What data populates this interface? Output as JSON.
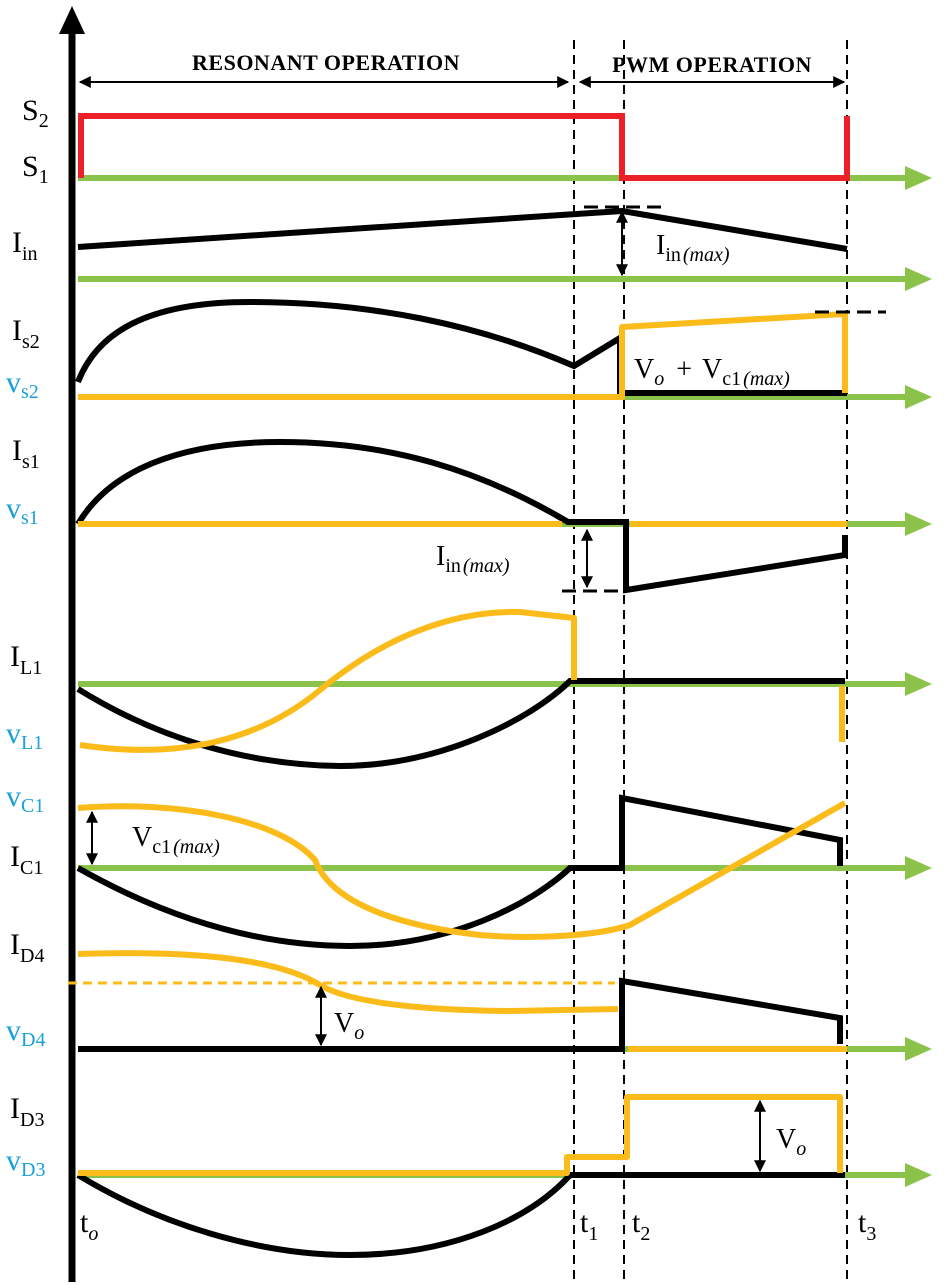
{
  "sections": {
    "resonant": "RESONANT OPERATION",
    "pwm": "PWM OPERATION"
  },
  "signals": [
    {
      "id": "s2",
      "base": "S",
      "sub": "2",
      "color": "black"
    },
    {
      "id": "s1",
      "base": "S",
      "sub": "1",
      "color": "black"
    },
    {
      "id": "iin",
      "base": "I",
      "sub": "in",
      "color": "black"
    },
    {
      "id": "is2",
      "base": "I",
      "sub": "s2",
      "color": "black"
    },
    {
      "id": "vs2",
      "base": "v",
      "sub": "s2",
      "color": "blue"
    },
    {
      "id": "is1",
      "base": "I",
      "sub": "s1",
      "color": "black"
    },
    {
      "id": "vs1",
      "base": "v",
      "sub": "s1",
      "color": "blue"
    },
    {
      "id": "il1",
      "base": "I",
      "sub": "L1",
      "color": "black"
    },
    {
      "id": "vl1",
      "base": "v",
      "sub": "L1",
      "color": "blue"
    },
    {
      "id": "vc1",
      "base": "v",
      "sub": "C1",
      "color": "blue"
    },
    {
      "id": "ic1",
      "base": "I",
      "sub": "C1",
      "color": "black"
    },
    {
      "id": "id4",
      "base": "I",
      "sub": "D4",
      "color": "black"
    },
    {
      "id": "vd4",
      "base": "v",
      "sub": "D4",
      "color": "blue"
    },
    {
      "id": "id3",
      "base": "I",
      "sub": "D3",
      "color": "black"
    },
    {
      "id": "vd3",
      "base": "v",
      "sub": "D3",
      "color": "blue"
    }
  ],
  "time_marks": [
    {
      "id": "t0",
      "base": "t",
      "sub": "o"
    },
    {
      "id": "t1",
      "base": "t",
      "sub": "1"
    },
    {
      "id": "t2",
      "base": "t",
      "sub": "2"
    },
    {
      "id": "t3",
      "base": "t",
      "sub": "3"
    }
  ],
  "annotations": {
    "iin_max_1": {
      "base": "I",
      "sub": "in",
      "paren": "(max)"
    },
    "vo_plus_vc1": {
      "a": "V",
      "a_sub": "o",
      "plus": "+",
      "b": "V",
      "b_sub": "c1",
      "paren": "(max)"
    },
    "iin_max_2": {
      "base": "I",
      "sub": "in",
      "paren": "(max)"
    },
    "vc1_max": {
      "base": "V",
      "sub": "c1",
      "paren": "(max)"
    },
    "vo_d4": {
      "base": "V",
      "sub": "o"
    },
    "vo_d3": {
      "base": "V",
      "sub": "o"
    }
  },
  "colors": {
    "switch": "#ec2127",
    "current": "#000000",
    "voltage": "#fbbb1a",
    "axis": "#8bc34a",
    "voltage_label": "#1aa0d8"
  }
}
